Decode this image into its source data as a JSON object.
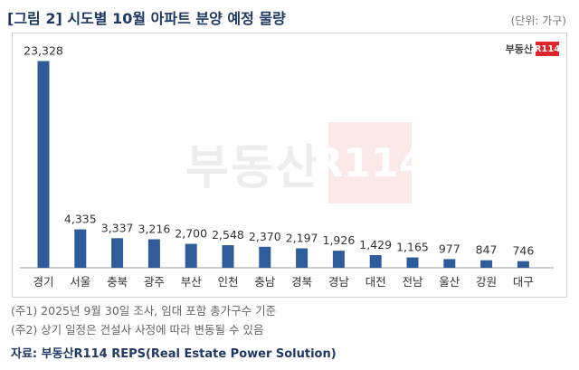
{
  "title": "[그림 2] 시도별 10월 아파트 분양 예정 물량",
  "unit": "(단위: 가구)",
  "logo": {
    "text": "부동산",
    "mark": "R114"
  },
  "watermark": {
    "text": "부동산",
    "mark": "R114"
  },
  "notes": [
    "(주1) 2025년 9월 30일 조사, 임대 포함 총가구수 기준",
    "(주2) 상기 일정은 건설사 사정에 따라 변동될 수 있음"
  ],
  "source": "자료: 부동산R114 REPS(Real Estate Power Solution)",
  "colors": {
    "bar": "#2e5b9a",
    "title": "#1f3864",
    "accent": "#e0252b"
  },
  "chart_data": {
    "type": "bar",
    "categories": [
      "경기",
      "서울",
      "충북",
      "광주",
      "부산",
      "인천",
      "충남",
      "경북",
      "경남",
      "대전",
      "전남",
      "울산",
      "강원",
      "대구"
    ],
    "values": [
      23328,
      4335,
      3337,
      3216,
      2700,
      2548,
      2370,
      2197,
      1926,
      1429,
      1165,
      977,
      847,
      746
    ],
    "value_labels": [
      "23,328",
      "4,335",
      "3,337",
      "3,216",
      "2,700",
      "2,548",
      "2,370",
      "2,197",
      "1,926",
      "1,429",
      "1,165",
      "977",
      "847",
      "746"
    ],
    "ylim": [
      0,
      24500
    ],
    "grid": false,
    "legend": "none"
  }
}
